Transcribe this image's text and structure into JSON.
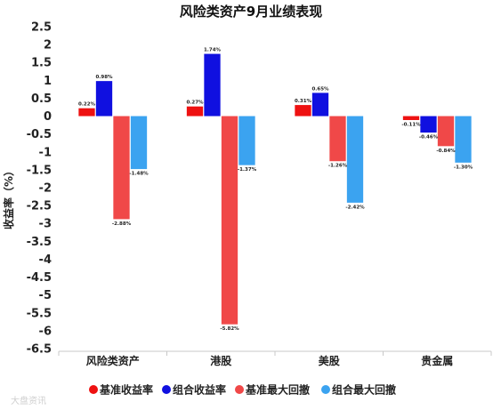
{
  "chart_data": {
    "type": "bar",
    "title": "风险类资产9月业绩表现",
    "ylabel": "收益率（%）",
    "xlabel": "",
    "ylim": [
      -6.5,
      2.5
    ],
    "ytick_step": 0.5,
    "yticks": [
      "2.5",
      "2",
      "1.5",
      "1",
      "0.5",
      "0",
      "-0.5",
      "-1",
      "-1.5",
      "-2",
      "-2.5",
      "-3",
      "-3.5",
      "-4",
      "-4.5",
      "-5",
      "-5.5",
      "-6",
      "-6.5"
    ],
    "categories": [
      "风险类资产",
      "港股",
      "美股",
      "贵金属"
    ],
    "legend_position": "bottom",
    "grid": false,
    "series": [
      {
        "name": "基准收益率",
        "color": "#ee1111",
        "values": [
          0.22,
          0.27,
          0.31,
          -0.11
        ],
        "labels": [
          "0.22%",
          "0.27%",
          "0.31%",
          "-0.11%"
        ]
      },
      {
        "name": "组合收益率",
        "color": "#1010e0",
        "values": [
          0.98,
          1.74,
          0.65,
          -0.46
        ],
        "labels": [
          "0.98%",
          "1.74%",
          "0.65%",
          "-0.46%"
        ]
      },
      {
        "name": "基准最大回撤",
        "color": "#f04848",
        "values": [
          -2.88,
          -5.82,
          -1.26,
          -0.84
        ],
        "labels": [
          "-2.88%",
          "-5.82%",
          "-1.26%",
          "-0.84%"
        ]
      },
      {
        "name": "组合最大回撤",
        "color": "#3ba3f0",
        "values": [
          -1.48,
          -1.37,
          -2.42,
          -1.3
        ],
        "labels": [
          "-1.48%",
          "-1.37%",
          "-2.42%",
          "-1.30%"
        ]
      }
    ]
  },
  "watermark": "大盘资讯"
}
